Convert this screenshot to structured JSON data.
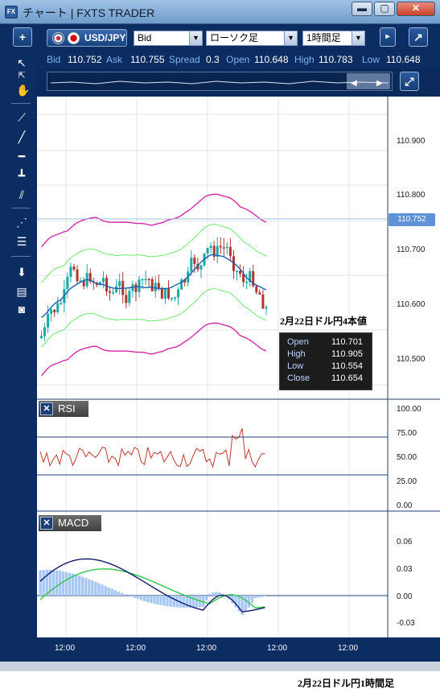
{
  "window": {
    "title": "チャート | FXTS TRADER",
    "app_icon": "FX"
  },
  "toolbar": {
    "add_label": "+",
    "symbol": "USD/JPY",
    "price_type": "Bid",
    "chart_type": "ローソク足",
    "timeframe": "1時間足",
    "detach_label": "↗"
  },
  "quote": {
    "bid_label": "Bid",
    "bid": "110.752",
    "ask_label": "Ask",
    "ask": "110.755",
    "spread_label": "Spread",
    "spread": "0.3",
    "open_label": "Open",
    "open": "110.648",
    "high_label": "High",
    "high": "110.783",
    "low_label": "Low",
    "low": "110.648"
  },
  "main_axis": {
    "ticks": [
      "110.900",
      "110.800",
      "110.700",
      "110.600",
      "110.500"
    ],
    "current_price": "110.752"
  },
  "overlay": {
    "title": "2月22日ドル円4本値",
    "open_label": "Open",
    "open": "110.701",
    "high_label": "High",
    "high": "110.905",
    "low_label": "Low",
    "low": "110.554",
    "close_label": "Close",
    "close": "110.654"
  },
  "rsi": {
    "name": "RSI",
    "ticks": [
      "100.00",
      "75.00",
      "50.00",
      "25.00",
      "0.00"
    ]
  },
  "macd": {
    "name": "MACD",
    "ticks": [
      "0.06",
      "0.03",
      "0.00",
      "-0.03"
    ]
  },
  "x_ticks": [
    "12:00",
    "12:00",
    "12:00",
    "12:00",
    "12:00"
  ],
  "caption": "2月22日ドル円1時間足",
  "colors": {
    "window_bg": "#0a2a5c",
    "up_candle": "#1aa7a7",
    "down_candle": "#b0362e",
    "bollinger_outer": "#d42aa8",
    "bollinger_inner": "#6ee86e",
    "moving_average": "#1f5fb0",
    "rsi_line": "#c0392b",
    "macd_line": "#111a6e",
    "signal_line": "#2fc84a",
    "histogram": "#a8c8f4"
  }
}
